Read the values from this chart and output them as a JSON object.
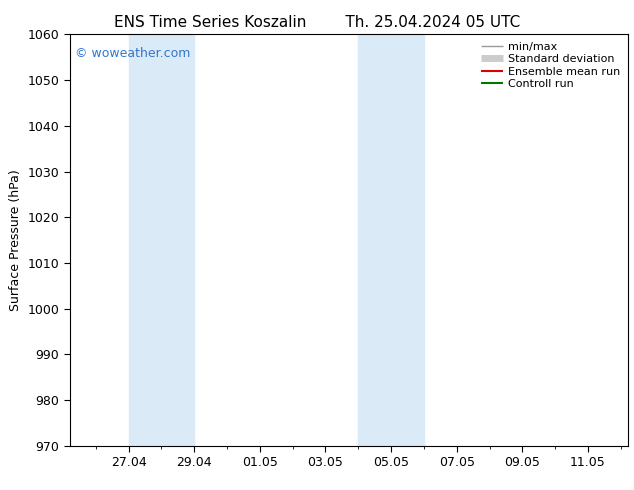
{
  "title_left": "ENS Time Series Koszalin",
  "title_right": "Th. 25.04.2024 05 UTC",
  "ylabel": "Surface Pressure (hPa)",
  "ylim": [
    970,
    1060
  ],
  "yticks": [
    970,
    980,
    990,
    1000,
    1010,
    1020,
    1030,
    1040,
    1050,
    1060
  ],
  "x_start": "2024-04-25 05:00",
  "x_end": "2024-05-12 05:00",
  "xtick_labels": [
    "27.04",
    "29.04",
    "01.05",
    "03.05",
    "05.05",
    "07.05",
    "09.05",
    "11.05"
  ],
  "xtick_dates": [
    "2024-04-27",
    "2024-04-29",
    "2024-05-01",
    "2024-05-03",
    "2024-05-05",
    "2024-05-07",
    "2024-05-09",
    "2024-05-11"
  ],
  "shaded_regions": [
    {
      "start": "2024-04-27",
      "end": "2024-04-29"
    },
    {
      "start": "2024-05-04",
      "end": "2024-05-06"
    }
  ],
  "shaded_color": "#daeaf7",
  "watermark_text": "© woweather.com",
  "watermark_color": "#3377cc",
  "legend_items": [
    {
      "label": "min/max",
      "color": "#999999",
      "linewidth": 1.0
    },
    {
      "label": "Standard deviation",
      "color": "#cccccc",
      "linewidth": 5
    },
    {
      "label": "Ensemble mean run",
      "color": "#dd0000",
      "linewidth": 1.5
    },
    {
      "label": "Controll run",
      "color": "#007700",
      "linewidth": 1.5
    }
  ],
  "bg_color": "#ffffff",
  "title_fontsize": 11,
  "axis_label_fontsize": 9,
  "tick_fontsize": 9,
  "watermark_fontsize": 9,
  "legend_fontsize": 8
}
